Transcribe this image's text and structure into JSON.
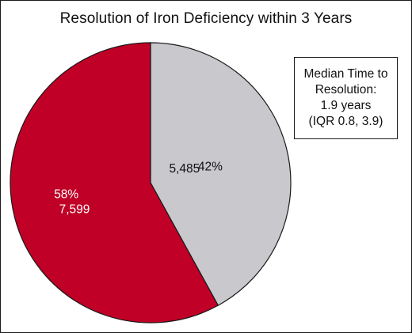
{
  "chart_data": {
    "type": "pie",
    "title": "Resolution of Iron Deficiency within 3 Years",
    "slices": [
      {
        "count": 5485,
        "count_label": "5,485",
        "percent": 42,
        "percent_label": "42%",
        "color": "#c9c8cc",
        "label_color": "#111111"
      },
      {
        "count": 7599,
        "count_label": "7,599",
        "percent": 58,
        "percent_label": "58%",
        "color": "#c00026",
        "label_color": "#ffffff"
      }
    ],
    "start_angle": "12 o'clock",
    "direction": "clockwise"
  },
  "annotation": {
    "lines": [
      "Median Time to",
      "Resolution:",
      "1.9 years",
      "(IQR 0.8, 3.9)"
    ]
  },
  "colors": {
    "red": "#c00026",
    "gray": "#c9c8cc",
    "stroke": "#1a1a1a"
  }
}
